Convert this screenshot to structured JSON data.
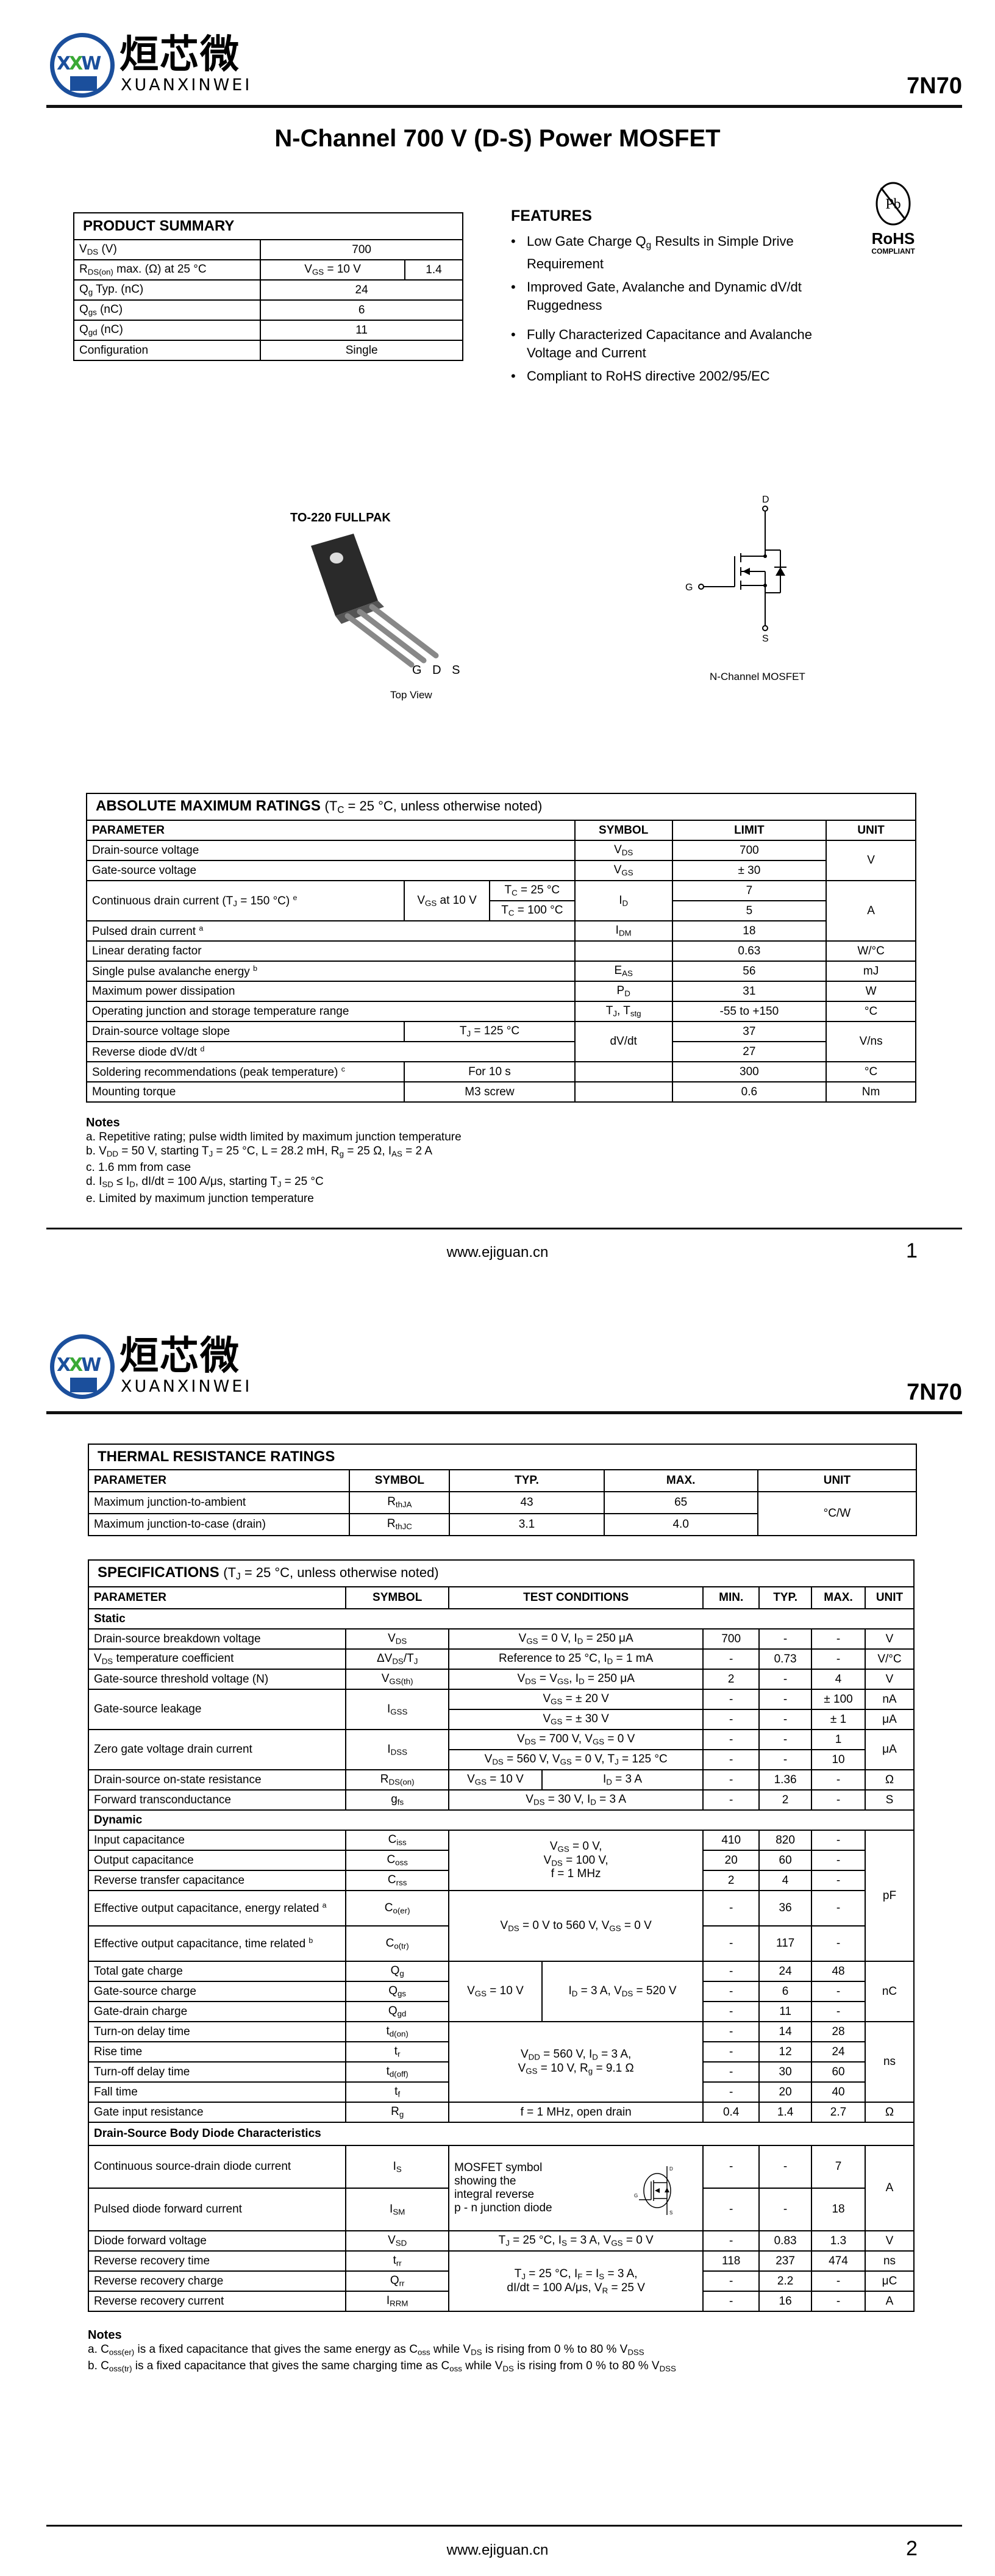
{
  "logo": {
    "mark_a": "X",
    "mark_b": "X",
    "mark_c": "W",
    "chinese": "烜芯微",
    "english": "XUANXINWEI",
    "brand_blue": "#1b4f9c",
    "brand_green": "#3aa935"
  },
  "part_number": "7N70",
  "title": "N-Channel 700 V (D-S)  Power MOSFET",
  "summary": {
    "title": "PRODUCT SUMMARY",
    "rows": [
      [
        "V_{DS} (V)",
        "700"
      ],
      [
        "R_{DS(on)} max. (Ω) at 25 °C",
        "V_{GS} = 10 V",
        "1.4"
      ],
      [
        "Q_{g} Typ. (nC)",
        "24"
      ],
      [
        "Q_{gs} (nC)",
        "6"
      ],
      [
        "Q_{gd} (nC)",
        "11"
      ],
      [
        "Configuration",
        "Single"
      ]
    ]
  },
  "features": {
    "title": "FEATURES",
    "items": [
      "Low Gate Charge Q_{g} Results in Simple Drive Requirement",
      "Improved Gate, Avalanche and Dynamic dV/dt Ruggedness",
      "Fully Characterized Capacitance and Avalanche Voltage and Current",
      "Compliant to RoHS directive 2002/95/EC"
    ]
  },
  "rohs": {
    "mark": "Pb",
    "label": "RoHS",
    "sub": "COMPLIANT"
  },
  "package": {
    "name": "TO-220 FULLPAK",
    "pin_g": "G",
    "pin_d": "D",
    "pin_s": "S",
    "view": "Top View"
  },
  "schematic": {
    "d": "D",
    "g": "G",
    "s": "S",
    "caption": "N-Channel MOSFET"
  },
  "abs_max": {
    "title": "ABSOLUTE MAXIMUM RATINGS",
    "condition": "(T_{C} = 25 °C, unless otherwise noted)",
    "headers": [
      "PARAMETER",
      "SYMBOL",
      "LIMIT",
      "UNIT"
    ],
    "rows": [
      [
        "Drain-source voltage",
        "V_{DS}",
        "700",
        "V"
      ],
      [
        "Gate-source voltage",
        "V_{GS}",
        "± 30"
      ],
      [
        "Continuous drain current (T_{J} = 150 °C) ^{e}",
        "V_{GS} at 10 V",
        "T_{C} = 25 °C",
        "I_{D}",
        "7",
        "A"
      ],
      [
        "T_{C} = 100 °C",
        "5"
      ],
      [
        "Pulsed drain current ^{a}",
        "I_{DM}",
        "18"
      ],
      [
        "Linear derating factor",
        "0.63",
        "W/°C"
      ],
      [
        "Single pulse avalanche energy ^{b}",
        "E_{AS}",
        "56",
        "mJ"
      ],
      [
        "Maximum power dissipation",
        "P_{D}",
        "31",
        "W"
      ],
      [
        "Operating junction and storage temperature range",
        "T_{J}, T_{stg}",
        "-55 to +150",
        "°C"
      ],
      [
        "Drain-source voltage slope",
        "T_{J} = 125 °C",
        "dV/dt",
        "37",
        "V/ns"
      ],
      [
        "Reverse diode dV/dt ^{d}",
        "27"
      ],
      [
        "Soldering recommendations (peak temperature) ^{c}",
        "For 10 s",
        "300",
        "°C"
      ],
      [
        "Mounting torque",
        "M3 screw",
        "0.6",
        "Nm"
      ]
    ],
    "notes_title": "Notes",
    "notes": [
      "a.  Repetitive rating; pulse width limited by maximum junction temperature",
      "b.  V_{DD} = 50 V, starting T_{J} = 25 °C, L = 28.2 mH, R_{g} = 25 Ω, I_{AS} = 2 A",
      "c.  1.6 mm from case",
      "d.  I_{SD} ≤ I_{D}, dI/dt = 100 A/μs, starting T_{J} = 25 °C",
      "e.  Limited by maximum junction temperature"
    ]
  },
  "thermal": {
    "title": "THERMAL RESISTANCE RATINGS",
    "headers": [
      "PARAMETER",
      "SYMBOL",
      "TYP.",
      "MAX.",
      "UNIT"
    ],
    "rows": [
      [
        "Maximum junction-to-ambient",
        "R_{thJA}",
        "43",
        "65",
        "°C/W"
      ],
      [
        "Maximum junction-to-case (drain)",
        "R_{thJC}",
        "3.1",
        "4.0"
      ]
    ]
  },
  "specs": {
    "title": "SPECIFICATIONS",
    "condition": "(T_{J} = 25 °C, unless otherwise noted)",
    "headers": [
      "PARAMETER",
      "SYMBOL",
      "TEST CONDITIONS",
      "MIN.",
      "TYP.",
      "MAX.",
      "UNIT"
    ],
    "sections": [
      "Static",
      "Dynamic",
      "Drain-Source Body Diode Characteristics"
    ],
    "rows": [
      [
        "Drain-source breakdown voltage",
        "V_{DS}",
        "V_{GS} = 0 V, I_{D} = 250 μA",
        "700",
        "-",
        "-",
        "V"
      ],
      [
        "V_{DS} temperature coefficient",
        "ΔV_{DS}/T_{J}",
        "Reference to 25 °C, I_{D} = 1 mA",
        "-",
        "0.73",
        "-",
        "V/°C"
      ],
      [
        "Gate-source threshold voltage (N)",
        "V_{GS(th)}",
        "V_{DS} = V_{GS}, I_{D} = 250 μA",
        "2",
        "-",
        "4",
        "V"
      ],
      [
        "Gate-source leakage",
        "I_{GSS}",
        "V_{GS} = ± 20 V",
        "-",
        "-",
        "± 100",
        "nA"
      ],
      [
        "V_{GS} = ± 30 V",
        "-",
        "-",
        "± 1",
        "μA"
      ],
      [
        "Zero gate voltage drain current",
        "I_{DSS}",
        "V_{DS} = 700 V, V_{GS} = 0 V",
        "-",
        "-",
        "1",
        "μA"
      ],
      [
        "V_{DS} = 560 V, V_{GS} = 0 V, T_{J} = 125 °C",
        "-",
        "-",
        "10"
      ],
      [
        "Drain-source on-state resistance",
        "R_{DS(on)}",
        "V_{GS} = 10 V",
        "I_{D} = 3 A",
        "-",
        "1.36",
        "-",
        "Ω"
      ],
      [
        "Forward transconductance",
        "g_{fs}",
        "V_{DS} = 30 V, I_{D} = 3 A",
        "-",
        "2",
        "-",
        "S"
      ],
      [
        "Input capacitance",
        "C_{iss}",
        "V_{GS} = 0 V,\nV_{DS} = 100 V,\nf = 1 MHz",
        "410",
        "820",
        "-",
        "pF"
      ],
      [
        "Output capacitance",
        "C_{oss}",
        "20",
        "60",
        "-"
      ],
      [
        "Reverse transfer capacitance",
        "C_{rss}",
        "2",
        "4",
        "-"
      ],
      [
        "Effective output capacitance, energy related ^{a}",
        "C_{o(er)}",
        "V_{DS} = 0 V to 560 V, V_{GS} = 0 V",
        "-",
        "36",
        "-"
      ],
      [
        "Effective output capacitance, time related ^{b}",
        "C_{o(tr)}",
        "-",
        "117",
        "-"
      ],
      [
        "Total gate charge",
        "Q_{g}",
        "V_{GS} = 10 V",
        "I_{D} = 3 A, V_{DS} = 520 V",
        "-",
        "24",
        "48",
        "nC"
      ],
      [
        "Gate-source charge",
        "Q_{gs}",
        "-",
        "6",
        "-"
      ],
      [
        "Gate-drain charge",
        "Q_{gd}",
        "-",
        "11",
        "-"
      ],
      [
        "Turn-on delay time",
        "t_{d(on)}",
        "V_{DD} = 560 V, I_{D} = 3 A,\nV_{GS} = 10 V, R_{g} = 9.1 Ω",
        "-",
        "14",
        "28",
        "ns"
      ],
      [
        "Rise time",
        "t_{r}",
        "-",
        "12",
        "24"
      ],
      [
        "Turn-off delay time",
        "t_{d(off)}",
        "-",
        "30",
        "60"
      ],
      [
        "Fall time",
        "t_{f}",
        "-",
        "20",
        "40"
      ],
      [
        "Gate input resistance",
        "R_{g}",
        "f = 1 MHz, open drain",
        "0.4",
        "1.4",
        "2.7",
        "Ω"
      ],
      [
        "Continuous source-drain diode current",
        "I_{S}",
        "MOSFET symbol\nshowing the\nintegral reverse\np - n junction diode",
        "-",
        "-",
        "7",
        "A"
      ],
      [
        "Pulsed diode forward current",
        "I_{SM}",
        "-",
        "-",
        "18"
      ],
      [
        "Diode forward voltage",
        "V_{SD}",
        "T_{J} = 25 °C, I_{S} = 3 A, V_{GS} = 0 V",
        "-",
        "0.83",
        "1.3",
        "V"
      ],
      [
        "Reverse recovery time",
        "t_{rr}",
        "T_{J} = 25 °C, I_{F} = I_{S} = 3 A,\ndI/dt = 100 A/μs, V_{R} = 25 V",
        "118",
        "237",
        "474",
        "ns"
      ],
      [
        "Reverse recovery charge",
        "Q_{rr}",
        "-",
        "2.2",
        "-",
        "μC"
      ],
      [
        "Reverse recovery current",
        "I_{RRM}",
        "-",
        "16",
        "-",
        "A"
      ]
    ],
    "mini_symbol": {
      "d": "D",
      "g": "G",
      "s": "S"
    },
    "notes_title": "Notes",
    "notes": [
      "a.  C_{oss(er)} is a fixed capacitance that gives the same energy as C_{oss} while V_{DS} is rising from 0 % to 80 % V_{DSS}",
      "b.  C_{oss(tr)} is a fixed capacitance that gives the same charging time as C_{oss} while V_{DS} is rising from 0 % to 80 % V_{DSS}"
    ]
  },
  "footer": {
    "url": "www.ejiguan.cn",
    "page1": "1",
    "page2": "2"
  }
}
